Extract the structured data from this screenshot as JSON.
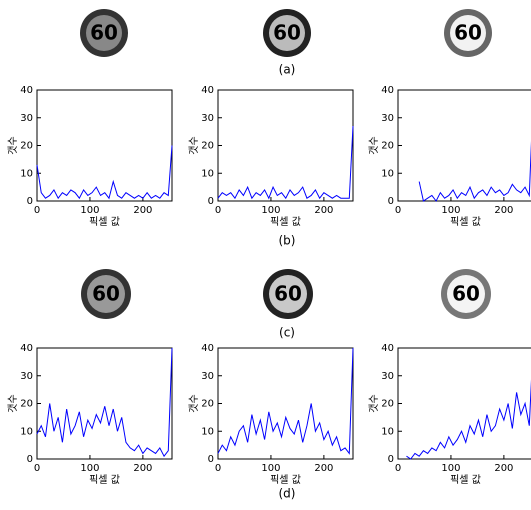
{
  "sign_label": "60",
  "captions": [
    "(a)",
    "(b)",
    "(c)",
    "(d)"
  ],
  "chart_data": [
    {
      "type": "line",
      "xlabel": "픽셀 값",
      "ylabel": "갯수",
      "color": "#0000ff",
      "xlim": [
        0,
        255
      ],
      "ylim": [
        0,
        40
      ],
      "xticks": [
        0,
        100,
        200
      ],
      "yticks": [
        0,
        10,
        20,
        30,
        40
      ],
      "x": [
        0,
        8,
        16,
        24,
        32,
        40,
        48,
        56,
        64,
        72,
        80,
        88,
        96,
        104,
        112,
        120,
        128,
        136,
        144,
        152,
        160,
        168,
        176,
        184,
        192,
        200,
        208,
        216,
        224,
        232,
        240,
        248,
        255
      ],
      "values": [
        13,
        3,
        1,
        2,
        4,
        1,
        3,
        2,
        4,
        3,
        1,
        4,
        2,
        3,
        5,
        2,
        3,
        1,
        7,
        2,
        1,
        3,
        2,
        1,
        2,
        1,
        3,
        1,
        2,
        1,
        3,
        2,
        20
      ]
    },
    {
      "type": "line",
      "xlabel": "픽셀 값",
      "ylabel": "갯수",
      "color": "#0000ff",
      "xlim": [
        0,
        255
      ],
      "ylim": [
        0,
        40
      ],
      "xticks": [
        0,
        100,
        200
      ],
      "yticks": [
        0,
        10,
        20,
        30,
        40
      ],
      "x": [
        0,
        8,
        16,
        24,
        32,
        40,
        48,
        56,
        64,
        72,
        80,
        88,
        96,
        104,
        112,
        120,
        128,
        136,
        144,
        152,
        160,
        168,
        176,
        184,
        192,
        200,
        208,
        216,
        224,
        232,
        240,
        248,
        255
      ],
      "values": [
        1,
        3,
        2,
        3,
        1,
        4,
        2,
        5,
        1,
        3,
        2,
        4,
        1,
        5,
        2,
        3,
        1,
        4,
        2,
        3,
        5,
        1,
        2,
        4,
        1,
        3,
        2,
        1,
        2,
        1,
        1,
        1,
        27
      ]
    },
    {
      "type": "line",
      "xlabel": "픽셀 값",
      "ylabel": "갯수",
      "color": "#0000ff",
      "xlim": [
        0,
        255
      ],
      "ylim": [
        0,
        40
      ],
      "xticks": [
        0,
        100,
        200
      ],
      "yticks": [
        0,
        10,
        20,
        30,
        40
      ],
      "x": [
        0,
        8,
        16,
        24,
        32,
        40,
        48,
        56,
        64,
        72,
        80,
        88,
        96,
        104,
        112,
        120,
        128,
        136,
        144,
        152,
        160,
        168,
        176,
        184,
        192,
        200,
        208,
        216,
        224,
        232,
        240,
        248,
        255
      ],
      "values": [
        null,
        null,
        null,
        null,
        null,
        7,
        0,
        1,
        2,
        0,
        3,
        1,
        2,
        4,
        1,
        3,
        2,
        5,
        1,
        3,
        4,
        2,
        5,
        3,
        4,
        2,
        3,
        6,
        4,
        3,
        5,
        2,
        35
      ]
    },
    {
      "type": "line",
      "xlabel": "픽셀 값",
      "ylabel": "갯수",
      "color": "#0000ff",
      "xlim": [
        0,
        255
      ],
      "ylim": [
        0,
        40
      ],
      "xticks": [
        0,
        100,
        200
      ],
      "yticks": [
        0,
        10,
        20,
        30,
        40
      ],
      "x": [
        0,
        8,
        16,
        24,
        32,
        40,
        48,
        56,
        64,
        72,
        80,
        88,
        96,
        104,
        112,
        120,
        128,
        136,
        144,
        152,
        160,
        168,
        176,
        184,
        192,
        200,
        208,
        216,
        224,
        232,
        240,
        248,
        255
      ],
      "values": [
        9,
        12,
        8,
        20,
        10,
        15,
        6,
        18,
        9,
        12,
        17,
        8,
        14,
        11,
        16,
        13,
        19,
        12,
        18,
        10,
        15,
        6,
        4,
        3,
        5,
        2,
        4,
        3,
        2,
        4,
        1,
        3,
        40
      ]
    },
    {
      "type": "line",
      "xlabel": "픽셀 값",
      "ylabel": "갯수",
      "color": "#0000ff",
      "xlim": [
        0,
        255
      ],
      "ylim": [
        0,
        40
      ],
      "xticks": [
        0,
        100,
        200
      ],
      "yticks": [
        0,
        10,
        20,
        30,
        40
      ],
      "x": [
        0,
        8,
        16,
        24,
        32,
        40,
        48,
        56,
        64,
        72,
        80,
        88,
        96,
        104,
        112,
        120,
        128,
        136,
        144,
        152,
        160,
        168,
        176,
        184,
        192,
        200,
        208,
        216,
        224,
        232,
        240,
        248,
        255
      ],
      "values": [
        2,
        5,
        3,
        8,
        5,
        10,
        12,
        6,
        16,
        9,
        14,
        7,
        17,
        10,
        13,
        8,
        15,
        11,
        9,
        14,
        6,
        12,
        20,
        10,
        13,
        7,
        10,
        5,
        8,
        3,
        4,
        2,
        40
      ]
    },
    {
      "type": "line",
      "xlabel": "픽셀 값",
      "ylabel": "갯수",
      "color": "#0000ff",
      "xlim": [
        0,
        255
      ],
      "ylim": [
        0,
        40
      ],
      "xticks": [
        0,
        100,
        200
      ],
      "yticks": [
        0,
        10,
        20,
        30,
        40
      ],
      "x": [
        0,
        8,
        16,
        24,
        32,
        40,
        48,
        56,
        64,
        72,
        80,
        88,
        96,
        104,
        112,
        120,
        128,
        136,
        144,
        152,
        160,
        168,
        176,
        184,
        192,
        200,
        208,
        216,
        224,
        232,
        240,
        248,
        255
      ],
      "values": [
        null,
        null,
        1,
        0,
        2,
        1,
        3,
        2,
        4,
        3,
        6,
        4,
        8,
        5,
        7,
        10,
        6,
        12,
        9,
        14,
        8,
        16,
        10,
        12,
        18,
        14,
        20,
        11,
        24,
        16,
        20,
        12,
        40
      ]
    }
  ]
}
